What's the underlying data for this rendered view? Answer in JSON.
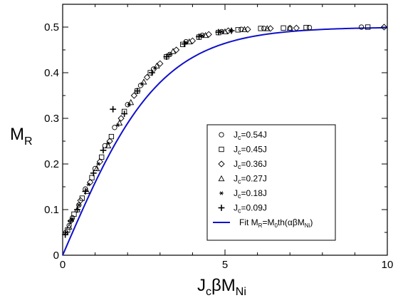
{
  "chart_data": {
    "type": "scatter",
    "xlabel": {
      "main": "J",
      "sub1": "c",
      "mid": "βM",
      "sub2": "Ni"
    },
    "ylabel": {
      "main": "M",
      "sub": "R"
    },
    "xlim": [
      0,
      10
    ],
    "ylim": [
      0,
      0.55
    ],
    "x_ticks": [
      0,
      5,
      10
    ],
    "x_tick_labels": [
      "0",
      "5",
      "10"
    ],
    "y_ticks": [
      0,
      0.1,
      0.2,
      0.3,
      0.4,
      0.5
    ],
    "y_tick_labels": [
      "0",
      "0.1",
      "0.2",
      "0.3",
      "0.4",
      "0.5"
    ],
    "grid": false,
    "legend_position": "lower-right",
    "series": [
      {
        "name": "J_c=0.54J",
        "legend_main": "J",
        "legend_sub": "c",
        "legend_rest": "=0.54J",
        "marker": "circle",
        "x": [
          0.1,
          0.2,
          0.3,
          0.5,
          0.7,
          1.0,
          1.3,
          1.6,
          2.0,
          2.4,
          2.8,
          3.3,
          3.8,
          4.3,
          4.9,
          5.5,
          6.2,
          7.0,
          7.6,
          9.2
        ],
        "y": [
          0.05,
          0.065,
          0.082,
          0.11,
          0.145,
          0.19,
          0.24,
          0.28,
          0.33,
          0.372,
          0.408,
          0.44,
          0.468,
          0.482,
          0.49,
          0.495,
          0.497,
          0.498,
          0.499,
          0.5
        ]
      },
      {
        "name": "J_c=0.45J",
        "legend_main": "J",
        "legend_sub": "c",
        "legend_rest": "=0.45J",
        "marker": "square",
        "x": [
          0.15,
          0.35,
          0.6,
          0.9,
          1.2,
          1.5,
          1.9,
          2.3,
          2.7,
          3.2,
          3.7,
          4.2,
          4.8,
          5.4,
          6.1,
          6.8,
          7.5,
          9.4
        ],
        "y": [
          0.055,
          0.09,
          0.125,
          0.17,
          0.215,
          0.26,
          0.315,
          0.36,
          0.4,
          0.435,
          0.462,
          0.478,
          0.488,
          0.494,
          0.497,
          0.498,
          0.499,
          0.5
        ]
      },
      {
        "name": "J_c=0.36J",
        "legend_main": "J",
        "legend_sub": "c",
        "legend_rest": "=0.36J",
        "marker": "diamond",
        "x": [
          0.25,
          0.55,
          0.85,
          1.15,
          1.45,
          1.8,
          2.2,
          2.6,
          3.0,
          3.5,
          4.0,
          4.5,
          5.1,
          5.7,
          6.4,
          7.2,
          9.9
        ],
        "y": [
          0.075,
          0.12,
          0.16,
          0.205,
          0.25,
          0.3,
          0.35,
          0.39,
          0.42,
          0.45,
          0.47,
          0.484,
          0.492,
          0.495,
          0.497,
          0.498,
          0.5
        ]
      },
      {
        "name": "J_c=0.27J",
        "legend_main": "J",
        "legend_sub": "c",
        "legend_rest": "=0.27J",
        "marker": "triangle",
        "x": [
          0.2,
          0.45,
          0.75,
          1.05,
          1.4,
          1.75,
          2.1,
          2.5,
          2.9,
          3.4,
          3.9,
          4.4,
          5.0,
          5.6,
          6.3,
          7.0
        ],
        "y": [
          0.062,
          0.1,
          0.14,
          0.19,
          0.24,
          0.29,
          0.335,
          0.38,
          0.415,
          0.447,
          0.468,
          0.482,
          0.49,
          0.495,
          0.497,
          0.498
        ]
      },
      {
        "name": "J_c=0.18J",
        "legend_main": "J",
        "legend_sub": "c",
        "legend_rest": "=0.18J",
        "marker": "star",
        "x": [
          0.12,
          0.3,
          0.5,
          0.8,
          1.1,
          1.4,
          1.7,
          2.05,
          2.45,
          2.85,
          3.3,
          3.8,
          4.3,
          4.9,
          5.2
        ],
        "y": [
          0.05,
          0.08,
          0.11,
          0.155,
          0.2,
          0.245,
          0.285,
          0.33,
          0.375,
          0.41,
          0.44,
          0.466,
          0.481,
          0.49,
          0.492
        ]
      },
      {
        "name": "J_c=0.09J",
        "legend_main": "J",
        "legend_sub": "c",
        "legend_rest": "=0.09J",
        "marker": "plus",
        "x": [
          0.08,
          0.25,
          0.45,
          0.7,
          0.95,
          1.25,
          1.55,
          1.9,
          2.3,
          2.75,
          3.2,
          3.75,
          4.2,
          4.8,
          5.2
        ],
        "y": [
          0.045,
          0.075,
          0.1,
          0.14,
          0.18,
          0.23,
          0.32,
          0.31,
          0.36,
          0.4,
          0.435,
          0.463,
          0.479,
          0.489,
          0.492
        ]
      }
    ],
    "fit": {
      "name": "Fit M_R=M_0th(αβM_Ni)",
      "legend_parts": [
        {
          "t": "Fit M",
          "sub": false
        },
        {
          "t": "R",
          "sub": true
        },
        {
          "t": "=M",
          "sub": false
        },
        {
          "t": "0",
          "sub": true
        },
        {
          "t": "th(αβM",
          "sub": false
        },
        {
          "t": "Ni",
          "sub": true
        },
        {
          "t": ")",
          "sub": false
        }
      ],
      "color": "#1010cc",
      "amplitude": 0.5,
      "alpha": 0.33,
      "x_start": 0.0,
      "x_end": 10.0
    }
  }
}
